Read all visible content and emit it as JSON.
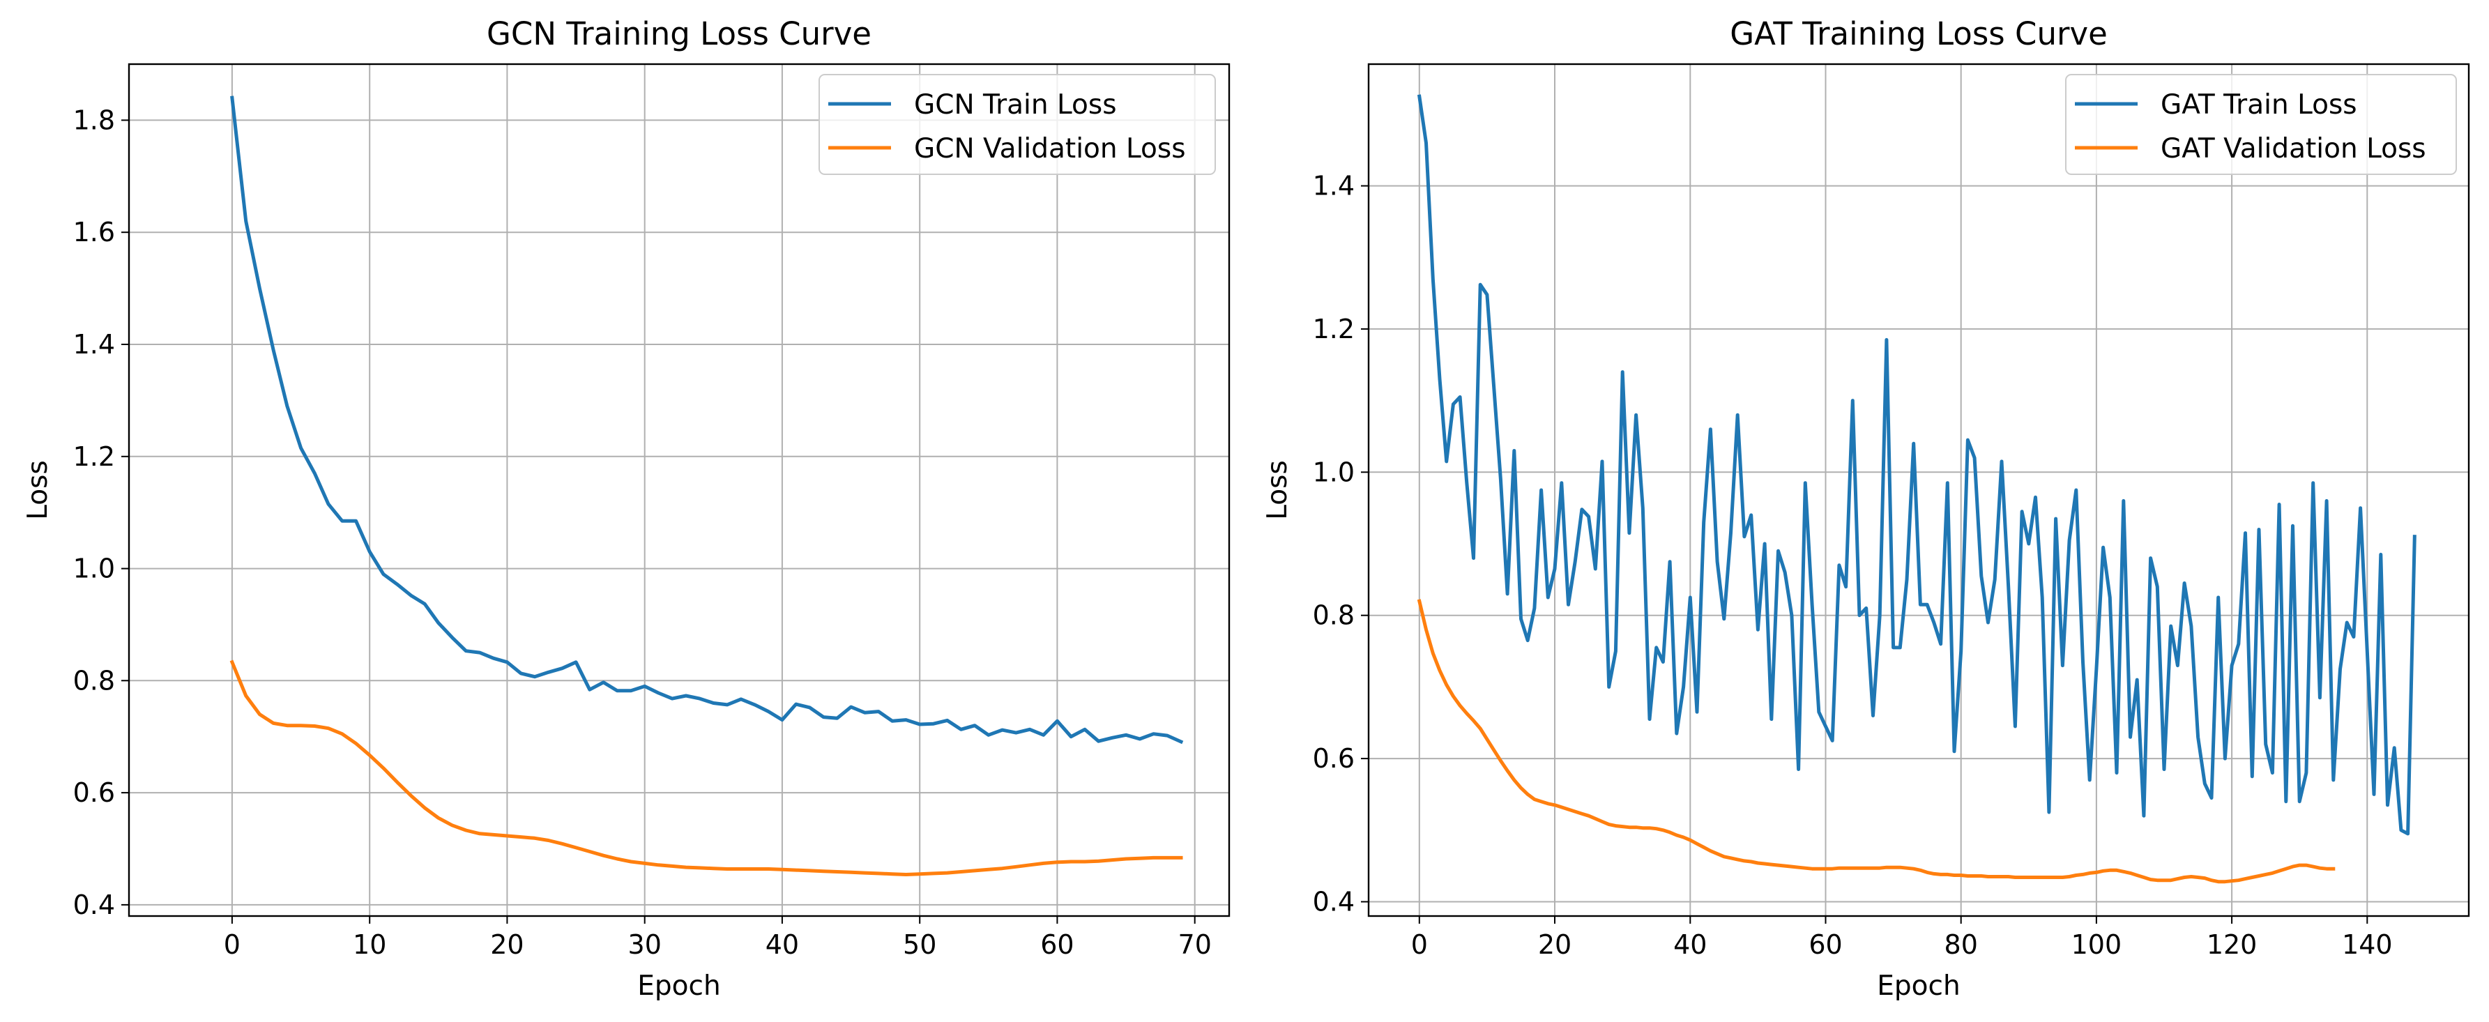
{
  "chart_data": [
    {
      "type": "line",
      "title": "GCN Training Loss Curve",
      "xlabel": "Epoch",
      "ylabel": "Loss",
      "xlim": [
        -7.5,
        72.5
      ],
      "ylim": [
        0.38,
        1.9
      ],
      "xticks": [
        0,
        10,
        20,
        30,
        40,
        50,
        60,
        70
      ],
      "yticks": [
        0.4,
        0.6,
        0.8,
        1.0,
        1.2,
        1.4,
        1.6,
        1.8
      ],
      "ytick_labels": [
        "0.4",
        "0.6",
        "0.8",
        "1.0",
        "1.2",
        "1.4",
        "1.6",
        "1.8"
      ],
      "grid": true,
      "legend_position": "top-right",
      "series": [
        {
          "name": "GCN Train Loss",
          "color": "#1f77b4",
          "values": [
            1.84,
            1.62,
            1.5,
            1.39,
            1.29,
            1.215,
            1.17,
            1.115,
            1.085,
            1.085,
            1.03,
            0.99,
            0.972,
            0.952,
            0.937,
            0.903,
            0.877,
            0.853,
            0.85,
            0.84,
            0.833,
            0.813,
            0.807,
            0.815,
            0.822,
            0.833,
            0.784,
            0.797,
            0.782,
            0.782,
            0.79,
            0.778,
            0.768,
            0.773,
            0.768,
            0.76,
            0.757,
            0.767,
            0.757,
            0.745,
            0.73,
            0.758,
            0.752,
            0.735,
            0.733,
            0.753,
            0.743,
            0.745,
            0.728,
            0.73,
            0.722,
            0.723,
            0.729,
            0.713,
            0.72,
            0.703,
            0.712,
            0.707,
            0.713,
            0.703,
            0.728,
            0.7,
            0.713,
            0.692,
            0.698,
            0.703,
            0.696,
            0.705,
            0.702,
            0.691
          ]
        },
        {
          "name": "GCN Validation Loss",
          "color": "#ff7f0e",
          "values": [
            0.833,
            0.773,
            0.74,
            0.724,
            0.72,
            0.72,
            0.719,
            0.715,
            0.705,
            0.688,
            0.667,
            0.644,
            0.619,
            0.595,
            0.573,
            0.555,
            0.542,
            0.533,
            0.527,
            0.525,
            0.523,
            0.521,
            0.519,
            0.515,
            0.509,
            0.502,
            0.495,
            0.488,
            0.482,
            0.477,
            0.474,
            0.471,
            0.469,
            0.467,
            0.466,
            0.465,
            0.464,
            0.464,
            0.464,
            0.464,
            0.463,
            0.462,
            0.461,
            0.46,
            0.459,
            0.458,
            0.457,
            0.456,
            0.455,
            0.454,
            0.455,
            0.456,
            0.457,
            0.459,
            0.461,
            0.463,
            0.465,
            0.468,
            0.471,
            0.474,
            0.476,
            0.477,
            0.477,
            0.478,
            0.48,
            0.482,
            0.483,
            0.484,
            0.484,
            0.484
          ]
        }
      ]
    },
    {
      "type": "line",
      "title": "GAT Training Loss Curve",
      "xlabel": "Epoch",
      "ylabel": "Loss",
      "xlim": [
        -7.5,
        155
      ],
      "ylim": [
        0.38,
        1.57
      ],
      "xticks": [
        0,
        20,
        40,
        60,
        80,
        100,
        120,
        140
      ],
      "yticks": [
        0.4,
        0.6,
        0.8,
        1.0,
        1.2,
        1.4
      ],
      "ytick_labels": [
        "0.4",
        "0.6",
        "0.8",
        "1.0",
        "1.2",
        "1.4"
      ],
      "grid": true,
      "legend_position": "top-right",
      "series": [
        {
          "name": "GAT Train Loss",
          "color": "#1f77b4",
          "values": [
            1.525,
            1.46,
            1.27,
            1.13,
            1.015,
            1.095,
            1.105,
            0.985,
            0.88,
            1.262,
            1.248,
            1.12,
            0.99,
            0.83,
            1.03,
            0.795,
            0.765,
            0.81,
            0.975,
            0.825,
            0.865,
            0.985,
            0.815,
            0.875,
            0.948,
            0.938,
            0.865,
            1.015,
            0.7,
            0.75,
            1.14,
            0.915,
            1.08,
            0.95,
            0.655,
            0.755,
            0.735,
            0.875,
            0.635,
            0.7,
            0.825,
            0.665,
            0.93,
            1.06,
            0.875,
            0.795,
            0.915,
            1.08,
            0.91,
            0.94,
            0.78,
            0.9,
            0.655,
            0.89,
            0.86,
            0.8,
            0.585,
            0.985,
            0.815,
            0.665,
            0.645,
            0.625,
            0.87,
            0.84,
            1.1,
            0.8,
            0.81,
            0.66,
            0.8,
            1.185,
            0.755,
            0.755,
            0.85,
            1.04,
            0.815,
            0.815,
            0.79,
            0.76,
            0.985,
            0.61,
            0.75,
            1.045,
            1.02,
            0.855,
            0.79,
            0.85,
            1.015,
            0.84,
            0.645,
            0.945,
            0.9,
            0.965,
            0.825,
            0.525,
            0.935,
            0.73,
            0.905,
            0.975,
            0.735,
            0.57,
            0.725,
            0.895,
            0.825,
            0.58,
            0.96,
            0.63,
            0.71,
            0.52,
            0.88,
            0.84,
            0.585,
            0.785,
            0.73,
            0.845,
            0.785,
            0.63,
            0.565,
            0.545,
            0.825,
            0.6,
            0.73,
            0.76,
            0.915,
            0.575,
            0.92,
            0.62,
            0.58,
            0.955,
            0.54,
            0.925,
            0.54,
            0.58,
            0.985,
            0.685,
            0.96,
            0.57,
            0.725,
            0.79,
            0.77,
            0.95,
            0.75,
            0.55,
            0.885,
            0.535,
            0.615,
            0.5,
            0.495,
            0.91
          ]
        },
        {
          "name": "GAT Validation Loss",
          "color": "#ff7f0e",
          "values": [
            0.82,
            0.78,
            0.747,
            0.723,
            0.703,
            0.687,
            0.674,
            0.663,
            0.653,
            0.642,
            0.627,
            0.612,
            0.597,
            0.583,
            0.57,
            0.559,
            0.55,
            0.543,
            0.54,
            0.537,
            0.535,
            0.532,
            0.529,
            0.526,
            0.523,
            0.52,
            0.516,
            0.512,
            0.508,
            0.506,
            0.505,
            0.504,
            0.504,
            0.503,
            0.503,
            0.502,
            0.5,
            0.497,
            0.493,
            0.49,
            0.486,
            0.481,
            0.476,
            0.471,
            0.467,
            0.463,
            0.461,
            0.459,
            0.457,
            0.456,
            0.454,
            0.453,
            0.452,
            0.451,
            0.45,
            0.449,
            0.448,
            0.447,
            0.446,
            0.446,
            0.446,
            0.446,
            0.447,
            0.447,
            0.447,
            0.447,
            0.447,
            0.447,
            0.447,
            0.448,
            0.448,
            0.448,
            0.447,
            0.446,
            0.444,
            0.441,
            0.439,
            0.438,
            0.438,
            0.437,
            0.437,
            0.436,
            0.436,
            0.436,
            0.435,
            0.435,
            0.435,
            0.435,
            0.434,
            0.434,
            0.434,
            0.434,
            0.434,
            0.434,
            0.434,
            0.434,
            0.435,
            0.437,
            0.438,
            0.44,
            0.441,
            0.443,
            0.444,
            0.444,
            0.442,
            0.44,
            0.437,
            0.434,
            0.431,
            0.43,
            0.43,
            0.43,
            0.432,
            0.434,
            0.435,
            0.434,
            0.433,
            0.43,
            0.428,
            0.428,
            0.429,
            0.43,
            0.432,
            0.434,
            0.436,
            0.438,
            0.44,
            0.443,
            0.446,
            0.449,
            0.451,
            0.451,
            0.449,
            0.447,
            0.446,
            0.446
          ]
        }
      ]
    }
  ]
}
